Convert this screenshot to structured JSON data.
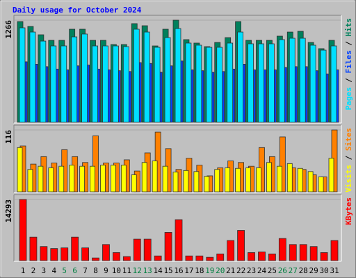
{
  "chart_data": [
    {
      "type": "bar",
      "title": "Daily usage for October 2024",
      "title_color": "#0000ff",
      "ylim": [
        0,
        1266
      ],
      "yticks": [
        1266
      ],
      "legend_separator": " / ",
      "series": [
        {
          "name": "Hits",
          "color": "#00805c",
          "values": [
            1249,
            1188,
            1085,
            1016,
            1016,
            1154,
            1154,
            1016,
            1016,
            964,
            964,
            1223,
            1197,
            947,
            1154,
            1266,
            1025,
            982,
            938,
            990,
            1050,
            1249,
            1016,
            1016,
            1016,
            1068,
            1119,
            1128,
            990,
            913,
            1016
          ]
        },
        {
          "name": "Files",
          "color": "#0040ff",
          "values": [
            750,
            720,
            690,
            660,
            650,
            700,
            710,
            660,
            650,
            640,
            630,
            740,
            730,
            620,
            700,
            760,
            650,
            640,
            620,
            630,
            660,
            720,
            650,
            650,
            650,
            680,
            690,
            690,
            640,
            600,
            650
          ]
        },
        {
          "name": "Pages",
          "color": "#00e0ff",
          "values": [
            1171,
            1119,
            1007,
            947,
            947,
            1059,
            1094,
            947,
            947,
            947,
            938,
            1154,
            1119,
            930,
            1050,
            1162,
            982,
            956,
            930,
            930,
            982,
            1119,
            973,
            973,
            973,
            1025,
            1042,
            1042,
            956,
            895,
            947
          ]
        }
      ]
    },
    {
      "type": "bar",
      "ylim": [
        0,
        116
      ],
      "yticks": [
        116
      ],
      "legend_separator": " / ",
      "series": [
        {
          "name": "Sites",
          "color": "#ff8000",
          "values": [
            86,
            52,
            66,
            54,
            79,
            66,
            55,
            105,
            54,
            54,
            60,
            39,
            73,
            112,
            81,
            42,
            63,
            50,
            30,
            45,
            58,
            55,
            48,
            83,
            66,
            103,
            45,
            42,
            32,
            28,
            116
          ]
        },
        {
          "name": "Visits",
          "color": "#ffff00",
          "values": [
            83,
            42,
            48,
            45,
            48,
            50,
            48,
            48,
            50,
            50,
            50,
            32,
            55,
            58,
            48,
            37,
            40,
            38,
            29,
            42,
            45,
            44,
            45,
            45,
            55,
            48,
            53,
            44,
            38,
            28,
            63
          ]
        }
      ]
    },
    {
      "type": "bar",
      "ylim": [
        0,
        14293
      ],
      "yticks": [
        14293
      ],
      "categories": [
        "1",
        "2",
        "3",
        "4",
        "5",
        "6",
        "7",
        "8",
        "9",
        "10",
        "11",
        "12",
        "13",
        "14",
        "15",
        "16",
        "17",
        "18",
        "19",
        "20",
        "21",
        "22",
        "23",
        "24",
        "25",
        "26",
        "27",
        "28",
        "29",
        "30",
        "31"
      ],
      "label_colors": [
        "#000000",
        "#000000",
        "#000000",
        "#000000",
        "#008040",
        "#008040",
        "#000000",
        "#000000",
        "#000000",
        "#000000",
        "#000000",
        "#008040",
        "#008040",
        "#000000",
        "#000000",
        "#000000",
        "#000000",
        "#000000",
        "#008040",
        "#008040",
        "#000000",
        "#000000",
        "#000000",
        "#000000",
        "#000000",
        "#008040",
        "#008040",
        "#000000",
        "#000000",
        "#000000",
        "#000000"
      ],
      "series": [
        {
          "name": "KBytes",
          "color": "#ff0000",
          "values": [
            14293,
            5495,
            3297,
            2826,
            2983,
            5495,
            2983,
            628,
            3768,
            1884,
            942,
            5024,
            5024,
            1099,
            6594,
            9577,
            1099,
            1099,
            785,
            1570,
            4710,
            7065,
            1884,
            2041,
            1570,
            5181,
            3768,
            3768,
            3297,
            1884,
            4710
          ]
        }
      ]
    }
  ]
}
